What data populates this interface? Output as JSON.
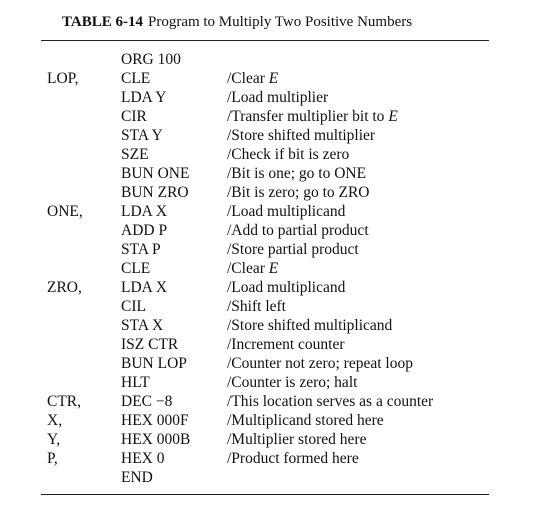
{
  "table": {
    "number": "TABLE 6-14",
    "title": "Program to Multiply Two Positive Numbers"
  },
  "lines": [
    {
      "label": "",
      "instr": "ORG 100",
      "comment": ""
    },
    {
      "label": "LOP,",
      "instr": "CLE",
      "comment": "/Clear E"
    },
    {
      "label": "",
      "instr": "LDA Y",
      "comment": "/Load multiplier"
    },
    {
      "label": "",
      "instr": "CIR",
      "comment": "/Transfer multiplier bit to E"
    },
    {
      "label": "",
      "instr": "STA Y",
      "comment": "/Store shifted multiplier"
    },
    {
      "label": "",
      "instr": "SZE",
      "comment": "/Check if bit is zero"
    },
    {
      "label": "",
      "instr": "BUN ONE",
      "comment": "/Bit is one; go to ONE"
    },
    {
      "label": "",
      "instr": "BUN ZRO",
      "comment": "/Bit is zero; go to ZRO"
    },
    {
      "label": "ONE,",
      "instr": "LDA X",
      "comment": "/Load multiplicand"
    },
    {
      "label": "",
      "instr": "ADD P",
      "comment": "/Add to partial product"
    },
    {
      "label": "",
      "instr": "STA P",
      "comment": "/Store partial product"
    },
    {
      "label": "",
      "instr": "CLE",
      "comment": "/Clear E"
    },
    {
      "label": "ZRO,",
      "instr": "LDA X",
      "comment": "/Load multiplicand"
    },
    {
      "label": "",
      "instr": "CIL",
      "comment": "/Shift left"
    },
    {
      "label": "",
      "instr": "STA X",
      "comment": "/Store shifted multiplicand"
    },
    {
      "label": "",
      "instr": "ISZ CTR",
      "comment": "/Increment counter"
    },
    {
      "label": "",
      "instr": "BUN LOP",
      "comment": "/Counter not zero; repeat loop"
    },
    {
      "label": "",
      "instr": "HLT",
      "comment": "/Counter is zero; halt"
    },
    {
      "label": "CTR,",
      "instr": "DEC −8",
      "comment": "/This location serves as a counter"
    },
    {
      "label": "X,",
      "instr": "HEX 000F",
      "comment": "/Multiplicand stored here"
    },
    {
      "label": "Y,",
      "instr": "HEX 000B",
      "comment": "/Multiplier stored here"
    },
    {
      "label": "P,",
      "instr": "HEX 0",
      "comment": "/Product formed here"
    },
    {
      "label": "",
      "instr": "END",
      "comment": ""
    }
  ]
}
